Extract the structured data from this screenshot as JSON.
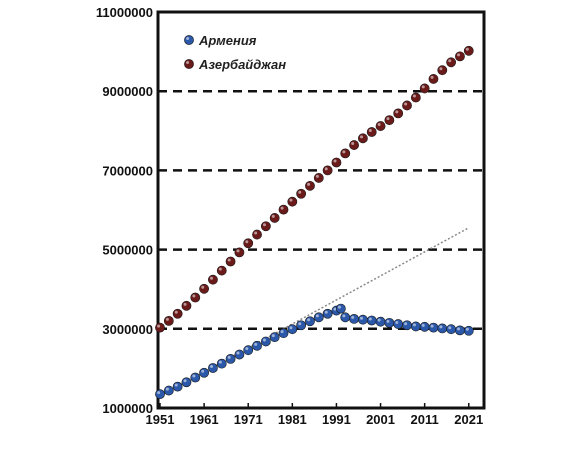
{
  "chart_data": {
    "type": "scatter",
    "title": "",
    "xlabel": "",
    "ylabel": "",
    "xlim": [
      1951,
      2024
    ],
    "ylim": [
      1000000,
      11000000
    ],
    "x_ticks": [
      "1951",
      "1961",
      "1971",
      "1981",
      "1991",
      "2001",
      "2011",
      "2021"
    ],
    "y_ticks": [
      "1000000",
      "3000000",
      "5000000",
      "7000000",
      "9000000",
      "11000000"
    ],
    "grid": "dashed horizontal lines at 3000000, 5000000, 7000000, 9000000",
    "legend": "top-left",
    "series": [
      {
        "name": "Армения",
        "color": "#2b58a8",
        "x": [
          1951,
          1953,
          1955,
          1957,
          1959,
          1961,
          1963,
          1965,
          1967,
          1969,
          1971,
          1973,
          1975,
          1977,
          1979,
          1981,
          1983,
          1985,
          1987,
          1989,
          1991,
          1992,
          1993,
          1995,
          1997,
          1999,
          2001,
          2003,
          2005,
          2007,
          2009,
          2011,
          2013,
          2015,
          2017,
          2019,
          2021
        ],
        "values": [
          1350000,
          1440000,
          1540000,
          1650000,
          1770000,
          1890000,
          2010000,
          2120000,
          2240000,
          2350000,
          2460000,
          2570000,
          2680000,
          2790000,
          2890000,
          2990000,
          3090000,
          3190000,
          3290000,
          3380000,
          3460000,
          3510000,
          3290000,
          3250000,
          3230000,
          3210000,
          3180000,
          3150000,
          3120000,
          3090000,
          3060000,
          3050000,
          3030000,
          3010000,
          2990000,
          2960000,
          2950000
        ]
      },
      {
        "name": "Азербайджан",
        "color": "#6b1a1a",
        "x": [
          1951,
          1953,
          1955,
          1957,
          1959,
          1961,
          1963,
          1965,
          1967,
          1969,
          1971,
          1973,
          1975,
          1977,
          1979,
          1981,
          1983,
          1985,
          1987,
          1989,
          1991,
          1993,
          1995,
          1997,
          1999,
          2001,
          2003,
          2005,
          2007,
          2009,
          2011,
          2013,
          2015,
          2017,
          2019,
          2021
        ],
        "values": [
          3030000,
          3200000,
          3380000,
          3580000,
          3790000,
          4010000,
          4240000,
          4470000,
          4700000,
          4930000,
          5160000,
          5380000,
          5590000,
          5800000,
          6010000,
          6210000,
          6410000,
          6610000,
          6810000,
          7000000,
          7200000,
          7430000,
          7640000,
          7810000,
          7970000,
          8120000,
          8270000,
          8440000,
          8640000,
          8840000,
          9070000,
          9310000,
          9530000,
          9730000,
          9880000,
          10020000
        ]
      }
    ],
    "trendline": {
      "style": "dotted",
      "color": "#888888",
      "x": [
        1951,
        2021
      ],
      "values": [
        1300000,
        5550000
      ]
    }
  }
}
